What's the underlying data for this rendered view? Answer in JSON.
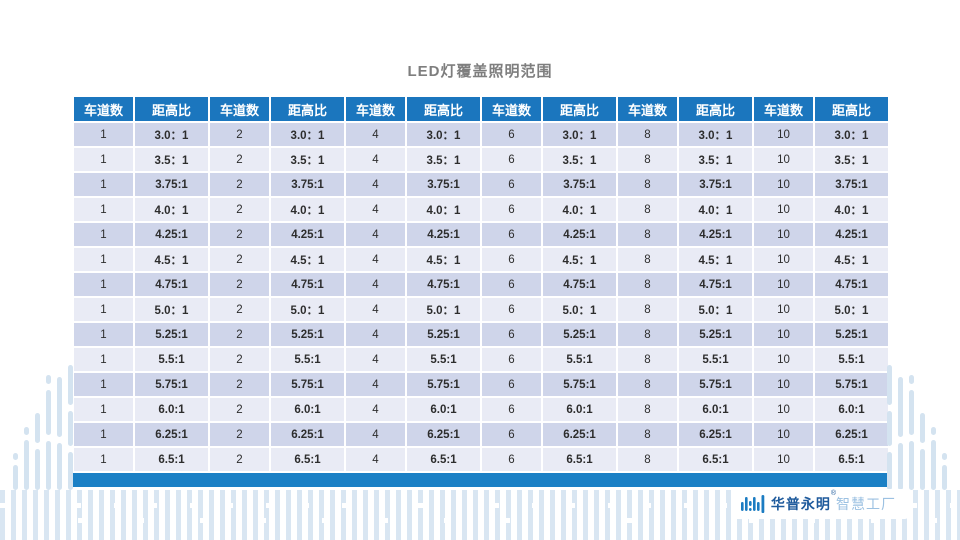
{
  "title": "LED灯覆盖照明范围",
  "table": {
    "columns": [
      "车道数",
      "距高比",
      "车道数",
      "距高比",
      "车道数",
      "距高比",
      "车道数",
      "距高比",
      "车道数",
      "距高比",
      "车道数",
      "距高比"
    ],
    "lane_values": [
      "1",
      "2",
      "4",
      "6",
      "8",
      "10"
    ],
    "ratio_values": [
      "3.0：1",
      "3.5：1",
      "3.75:1",
      "4.0：1",
      "4.25:1",
      "4.5：1",
      "4.75:1",
      "5.0：1",
      "5.25:1",
      "5.5:1",
      "5.75:1",
      "6.0:1",
      "6.25:1",
      "6.5:1"
    ],
    "rows": [
      [
        "1",
        "3.0：1",
        "2",
        "3.0：1",
        "4",
        "3.0：1",
        "6",
        "3.0：1",
        "8",
        "3.0：1",
        "10",
        "3.0：1"
      ],
      [
        "1",
        "3.5：1",
        "2",
        "3.5：1",
        "4",
        "3.5：1",
        "6",
        "3.5：1",
        "8",
        "3.5：1",
        "10",
        "3.5：1"
      ],
      [
        "1",
        "3.75:1",
        "2",
        "3.75:1",
        "4",
        "3.75:1",
        "6",
        "3.75:1",
        "8",
        "3.75:1",
        "10",
        "3.75:1"
      ],
      [
        "1",
        "4.0：1",
        "2",
        "4.0：1",
        "4",
        "4.0：1",
        "6",
        "4.0：1",
        "8",
        "4.0：1",
        "10",
        "4.0：1"
      ],
      [
        "1",
        "4.25:1",
        "2",
        "4.25:1",
        "4",
        "4.25:1",
        "6",
        "4.25:1",
        "8",
        "4.25:1",
        "10",
        "4.25:1"
      ],
      [
        "1",
        "4.5：1",
        "2",
        "4.5：1",
        "4",
        "4.5：1",
        "6",
        "4.5：1",
        "8",
        "4.5：1",
        "10",
        "4.5：1"
      ],
      [
        "1",
        "4.75:1",
        "2",
        "4.75:1",
        "4",
        "4.75:1",
        "6",
        "4.75:1",
        "8",
        "4.75:1",
        "10",
        "4.75:1"
      ],
      [
        "1",
        "5.0：1",
        "2",
        "5.0：1",
        "4",
        "5.0：1",
        "6",
        "5.0：1",
        "8",
        "5.0：1",
        "10",
        "5.0：1"
      ],
      [
        "1",
        "5.25:1",
        "2",
        "5.25:1",
        "4",
        "5.25:1",
        "6",
        "5.25:1",
        "8",
        "5.25:1",
        "10",
        "5.25:1"
      ],
      [
        "1",
        "5.5:1",
        "2",
        "5.5:1",
        "4",
        "5.5:1",
        "6",
        "5.5:1",
        "8",
        "5.5:1",
        "10",
        "5.5:1"
      ],
      [
        "1",
        "5.75:1",
        "2",
        "5.75:1",
        "4",
        "5.75:1",
        "6",
        "5.75:1",
        "8",
        "5.75:1",
        "10",
        "5.75:1"
      ],
      [
        "1",
        "6.0:1",
        "2",
        "6.0:1",
        "4",
        "6.0:1",
        "6",
        "6.0:1",
        "8",
        "6.0:1",
        "10",
        "6.0:1"
      ],
      [
        "1",
        "6.25:1",
        "2",
        "6.25:1",
        "4",
        "6.25:1",
        "6",
        "6.25:1",
        "8",
        "6.25:1",
        "10",
        "6.25:1"
      ],
      [
        "1",
        "6.5:1",
        "2",
        "6.5:1",
        "4",
        "6.5:1",
        "6",
        "6.5:1",
        "8",
        "6.5:1",
        "10",
        "6.5:1"
      ]
    ]
  },
  "footer": {
    "brand_primary": "华普永明",
    "brand_mark": "®",
    "brand_secondary": "智慧工厂"
  },
  "colors": {
    "header_bg": "#1B76BE",
    "row_dark": "#CFD5EA",
    "row_light": "#E9EBF5",
    "bottom_bar": "#1B80C5",
    "decor_stripe": "#D9E6F2",
    "title_text": "#7E7E7E",
    "brand_dark_blue": "#1E5A9C",
    "brand_light_blue": "#9CC1E2"
  }
}
